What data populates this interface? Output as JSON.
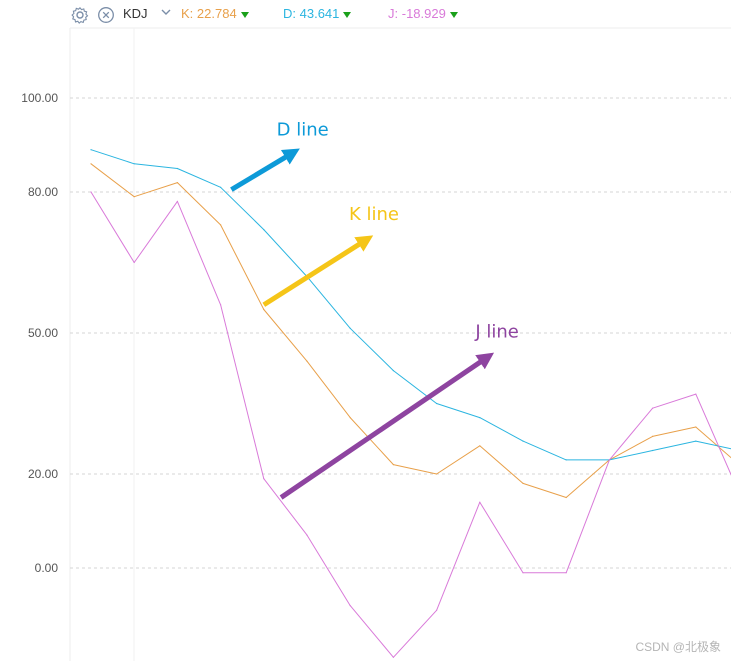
{
  "header": {
    "indicator_name": "KDJ",
    "k_label": "K:",
    "k_value": "22.784",
    "d_label": "D:",
    "d_value": "43.641",
    "j_label": "J:",
    "j_value": "-18.929",
    "settings_icon": "gear-icon",
    "close_icon": "close-circle-icon",
    "dropdown_icon": "chevron-down-icon"
  },
  "colors": {
    "K": "#e8a04a",
    "D": "#2bb5e0",
    "J": "#d97ad9",
    "arrow_D": "#0d9ad8",
    "arrow_K": "#f5c518",
    "arrow_J": "#8e44a0",
    "grid": "#d6d6d6",
    "axis_text": "#555555",
    "down_marker": "#1aa01a"
  },
  "chart_data": {
    "type": "line",
    "title": "KDJ",
    "x": [
      0,
      1,
      2,
      3,
      4,
      5,
      6,
      7,
      8,
      9,
      10,
      11,
      12,
      13,
      14,
      15
    ],
    "ylim": [
      -19,
      113
    ],
    "yticks": [
      100,
      80,
      50,
      20,
      0
    ],
    "ytick_labels": [
      "100.00",
      "80.00",
      "50.00",
      "20.00",
      "0.00"
    ],
    "grid": true,
    "series": [
      {
        "name": "K",
        "values": [
          86,
          79,
          82,
          73,
          55,
          44,
          32,
          22,
          20,
          26,
          18,
          15,
          23,
          28,
          30,
          22
        ]
      },
      {
        "name": "D",
        "values": [
          89,
          86,
          85,
          81,
          72,
          62,
          51,
          42,
          35,
          32,
          27,
          23,
          23,
          25,
          27,
          25
        ]
      },
      {
        "name": "J",
        "values": [
          80,
          65,
          78,
          56,
          19,
          7,
          -8,
          -19,
          -9,
          14,
          -1,
          -1,
          23,
          34,
          37,
          16
        ]
      }
    ],
    "annotations": [
      {
        "text": "D line",
        "color_key": "arrow_D",
        "from": [
          3.25,
          80.5
        ],
        "to": [
          4.7,
          88.5
        ],
        "label_at": [
          4.9,
          92
        ]
      },
      {
        "text": "K line",
        "color_key": "arrow_K",
        "from": [
          4.0,
          56
        ],
        "to": [
          6.4,
          70
        ],
        "label_at": [
          6.55,
          74
        ]
      },
      {
        "text": "J line",
        "color_key": "arrow_J",
        "from": [
          4.4,
          15
        ],
        "to": [
          9.2,
          45
        ],
        "label_at": [
          9.4,
          49
        ]
      }
    ],
    "watermark": "CSDN @北极象"
  }
}
